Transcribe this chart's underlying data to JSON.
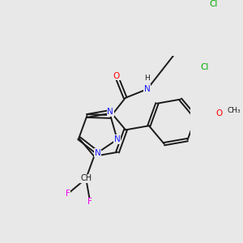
{
  "bg_color": "#e8e8e8",
  "bond_color": "#1a1a1a",
  "bond_width": 1.4,
  "figsize": [
    3.0,
    3.0
  ],
  "dpi": 100,
  "colors": {
    "N": "#1a1aff",
    "O": "#ff0000",
    "F": "#ee00ee",
    "Cl": "#00aa00",
    "C": "#1a1a1a",
    "H": "#1a1a1a"
  },
  "fs": 7.5
}
